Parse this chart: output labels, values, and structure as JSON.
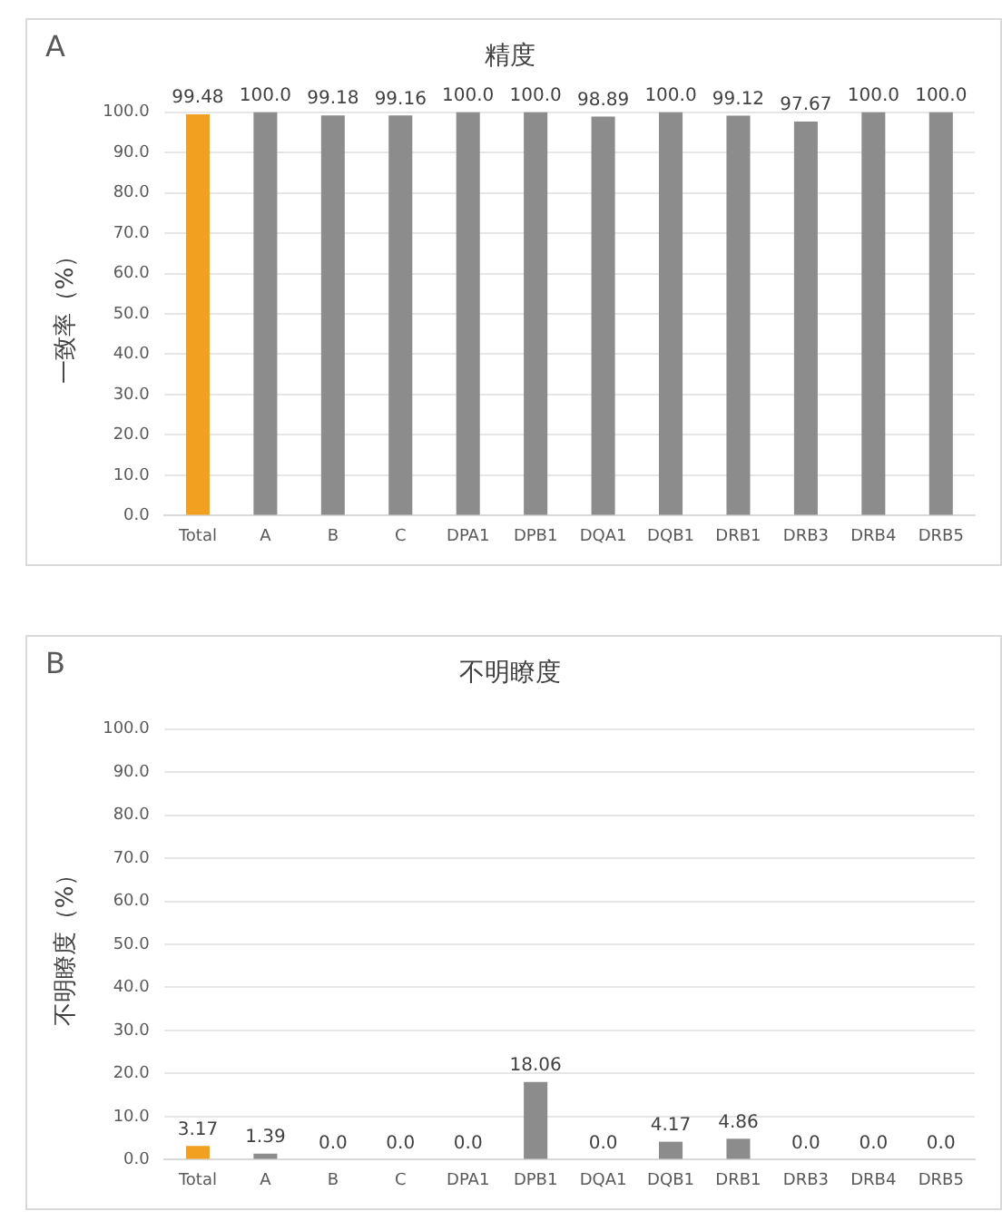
{
  "chart_data": [
    {
      "type": "bar",
      "title": "精度",
      "ylabel": "一致率（%）",
      "annotations": [
        "A"
      ],
      "categories": [
        "Total",
        "A",
        "B",
        "C",
        "DPA1",
        "DPB1",
        "DQA1",
        "DQB1",
        "DRB1",
        "DRB3",
        "DRB4",
        "DRB5"
      ],
      "values": [
        99.48,
        100,
        99.18,
        99.16,
        100,
        100,
        98.89,
        100,
        99.12,
        97.67,
        100,
        100
      ],
      "value_labels": [
        "99.48",
        "100.0",
        "99.18",
        "99.16",
        "100.0",
        "100.0",
        "98.89",
        "100.0",
        "99.12",
        "97.67",
        "100.0",
        "100.0"
      ],
      "colors": [
        "#f2a01f",
        "#8c8c8c",
        "#8c8c8c",
        "#8c8c8c",
        "#8c8c8c",
        "#8c8c8c",
        "#8c8c8c",
        "#8c8c8c",
        "#8c8c8c",
        "#8c8c8c",
        "#8c8c8c",
        "#8c8c8c"
      ],
      "ylim": [
        0,
        100
      ],
      "yticks": [
        {
          "value": 0,
          "label": "0.0"
        },
        {
          "value": 10,
          "label": "10.0"
        },
        {
          "value": 20,
          "label": "20.0"
        },
        {
          "value": 30,
          "label": "30.0"
        },
        {
          "value": 40,
          "label": "40.0"
        },
        {
          "value": 50,
          "label": "50.0"
        },
        {
          "value": 60,
          "label": "60.0"
        },
        {
          "value": 70,
          "label": "70.0"
        },
        {
          "value": 80,
          "label": "80.0"
        },
        {
          "value": 90,
          "label": "90.0"
        },
        {
          "value": 100,
          "label": "100.0"
        }
      ],
      "grid": "y"
    },
    {
      "type": "bar",
      "title": "不明瞭度",
      "ylabel": "不明瞭度（%）",
      "annotations": [
        "B"
      ],
      "categories": [
        "Total",
        "A",
        "B",
        "C",
        "DPA1",
        "DPB1",
        "DQA1",
        "DQB1",
        "DRB1",
        "DRB3",
        "DRB4",
        "DRB5"
      ],
      "values": [
        3.17,
        1.39,
        0,
        0,
        0,
        18.06,
        0,
        4.17,
        4.86,
        0,
        0,
        0
      ],
      "value_labels": [
        "3.17",
        "1.39",
        "0.0",
        "0.0",
        "0.0",
        "18.06",
        "0.0",
        "4.17",
        "4.86",
        "0.0",
        "0.0",
        "0.0"
      ],
      "colors": [
        "#f2a01f",
        "#8c8c8c",
        "#8c8c8c",
        "#8c8c8c",
        "#8c8c8c",
        "#8c8c8c",
        "#8c8c8c",
        "#8c8c8c",
        "#8c8c8c",
        "#8c8c8c",
        "#8c8c8c",
        "#8c8c8c"
      ],
      "ylim": [
        0,
        100
      ],
      "yticks": [
        {
          "value": 0,
          "label": "0.0"
        },
        {
          "value": 10,
          "label": "10.0"
        },
        {
          "value": 20,
          "label": "20.0"
        },
        {
          "value": 30,
          "label": "30.0"
        },
        {
          "value": 40,
          "label": "40.0"
        },
        {
          "value": 50,
          "label": "50.0"
        },
        {
          "value": 60,
          "label": "60.0"
        },
        {
          "value": 70,
          "label": "70.0"
        },
        {
          "value": 80,
          "label": "80.0"
        },
        {
          "value": 90,
          "label": "90.0"
        },
        {
          "value": 100,
          "label": "100.0"
        }
      ],
      "grid": "y"
    }
  ]
}
